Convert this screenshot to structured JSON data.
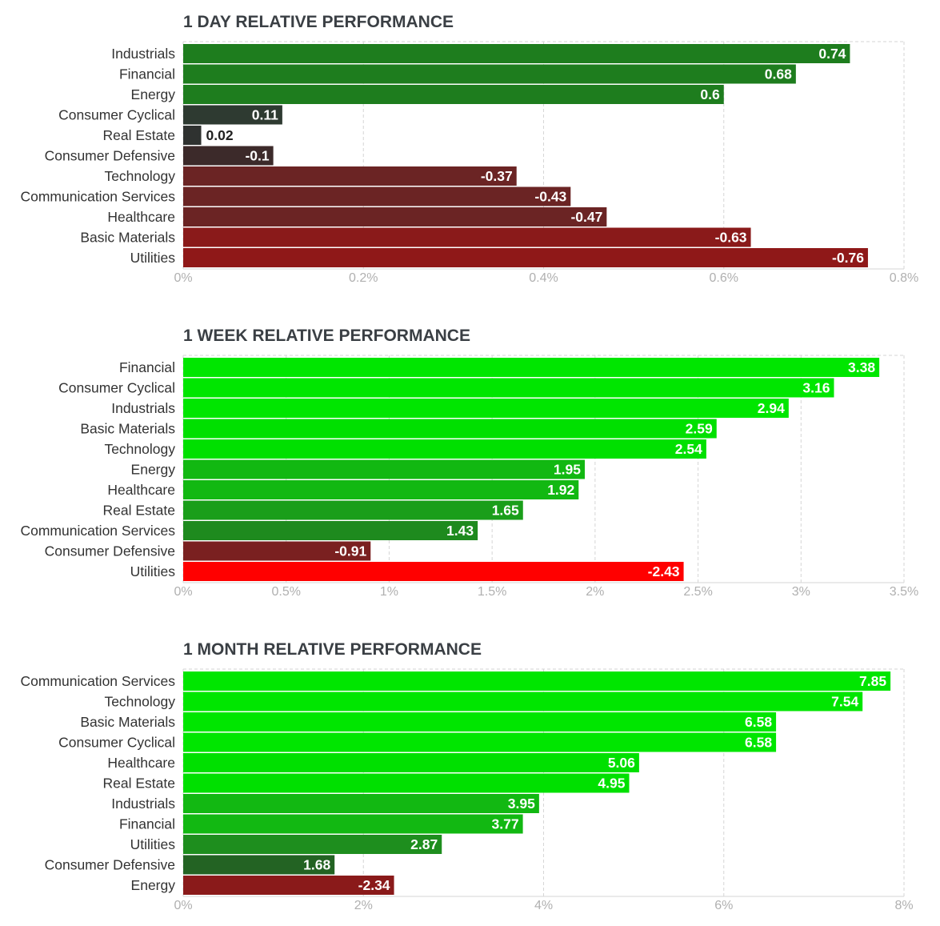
{
  "chart_data": [
    {
      "type": "bar",
      "orientation": "horizontal",
      "title": "1 DAY RELATIVE PERFORMANCE",
      "categories": [
        "Industrials",
        "Financial",
        "Energy",
        "Consumer Cyclical",
        "Real Estate",
        "Consumer Defensive",
        "Technology",
        "Communication Services",
        "Healthcare",
        "Basic Materials",
        "Utilities"
      ],
      "values": [
        0.74,
        0.68,
        0.6,
        0.11,
        0.02,
        -0.1,
        -0.37,
        -0.43,
        -0.47,
        -0.63,
        -0.76
      ],
      "value_labels": [
        "0.74",
        "0.68",
        "0.6",
        "0.11",
        "0.02",
        "-0.1",
        "-0.37",
        "-0.43",
        "-0.47",
        "-0.63",
        "-0.76"
      ],
      "colors": [
        "#1e7d1e",
        "#1e7d1e",
        "#1e7d1e",
        "#2e3a31",
        "#2f3230",
        "#3c2a2a",
        "#6b2424",
        "#6b2424",
        "#6b2424",
        "#8a1a1a",
        "#8f1818"
      ],
      "bar_extent": "absolute value",
      "xlim": [
        0,
        0.8
      ],
      "ticks": [
        0,
        0.2,
        0.4,
        0.6,
        0.8
      ],
      "tick_labels": [
        "0%",
        "0.2%",
        "0.4%",
        "0.6%",
        "0.8%"
      ],
      "grid": true
    },
    {
      "type": "bar",
      "orientation": "horizontal",
      "title": "1 WEEK RELATIVE PERFORMANCE",
      "categories": [
        "Financial",
        "Consumer Cyclical",
        "Industrials",
        "Basic Materials",
        "Technology",
        "Energy",
        "Healthcare",
        "Real Estate",
        "Communication Services",
        "Consumer Defensive",
        "Utilities"
      ],
      "values": [
        3.38,
        3.16,
        2.94,
        2.59,
        2.54,
        1.95,
        1.92,
        1.65,
        1.43,
        -0.91,
        -2.43
      ],
      "value_labels": [
        "3.38",
        "3.16",
        "2.94",
        "2.59",
        "2.54",
        "1.95",
        "1.92",
        "1.65",
        "1.43",
        "-0.91",
        "-2.43"
      ],
      "colors": [
        "#00e600",
        "#00e600",
        "#00e600",
        "#00e000",
        "#00e000",
        "#12b812",
        "#12b812",
        "#1a9e1a",
        "#1e8a1e",
        "#7a2020",
        "#ff0000"
      ],
      "bar_extent": "absolute value",
      "xlim": [
        0,
        3.5
      ],
      "ticks": [
        0,
        0.5,
        1,
        1.5,
        2,
        2.5,
        3,
        3.5
      ],
      "tick_labels": [
        "0%",
        "0.5%",
        "1%",
        "1.5%",
        "2%",
        "2.5%",
        "3%",
        "3.5%"
      ],
      "grid": true
    },
    {
      "type": "bar",
      "orientation": "horizontal",
      "title": "1 MONTH RELATIVE PERFORMANCE",
      "categories": [
        "Communication Services",
        "Technology",
        "Basic Materials",
        "Consumer Cyclical",
        "Healthcare",
        "Real Estate",
        "Industrials",
        "Financial",
        "Utilities",
        "Consumer Defensive",
        "Energy"
      ],
      "values": [
        7.85,
        7.54,
        6.58,
        6.58,
        5.06,
        4.95,
        3.95,
        3.77,
        2.87,
        1.68,
        -2.34
      ],
      "value_labels": [
        "7.85",
        "7.54",
        "6.58",
        "6.58",
        "5.06",
        "4.95",
        "3.95",
        "3.77",
        "2.87",
        "1.68",
        "-2.34"
      ],
      "colors": [
        "#00e600",
        "#00e600",
        "#00e600",
        "#00e600",
        "#00e000",
        "#00e000",
        "#12b812",
        "#12b812",
        "#1e8e1e",
        "#236323",
        "#8a1a1a"
      ],
      "bar_extent": "absolute value",
      "xlim": [
        0,
        8
      ],
      "ticks": [
        0,
        2,
        4,
        6,
        8
      ],
      "tick_labels": [
        "0%",
        "2%",
        "4%",
        "6%",
        "8%"
      ],
      "grid": true
    }
  ],
  "colors": {
    "title": "#3a3f44",
    "category_label": "#333333",
    "tick_label": "#b0b0b0",
    "grid": "#d6d6d6",
    "value_text_inside": "#ffffff",
    "value_text_outside": "#222222"
  }
}
